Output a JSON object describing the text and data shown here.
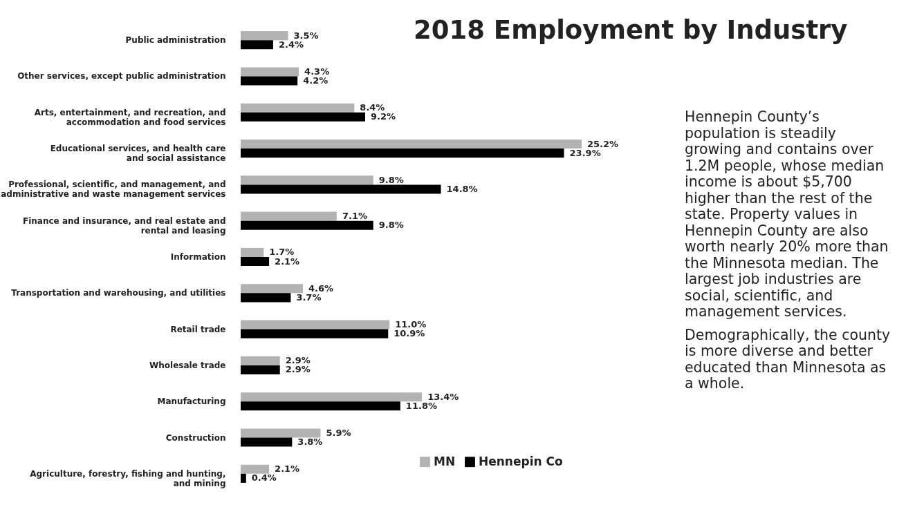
{
  "chart_data": {
    "type": "bar",
    "orientation": "horizontal",
    "title": "2018 Employment by Industry",
    "categories": [
      "Public administration",
      "Other services, except public administration",
      "Arts, entertainment, and recreation, and\naccommodation and food services",
      "Educational services, and health care\nand social assistance",
      "Professional, scientific, and management, and\nadministrative and waste management services",
      "Finance and insurance, and real estate and\nrental and leasing",
      "Information",
      "Transportation and warehousing, and utilities",
      "Retail trade",
      "Wholesale trade",
      "Manufacturing",
      "Construction",
      "Agriculture, forestry, fishing and hunting,\nand mining"
    ],
    "series": [
      {
        "name": "MN",
        "color": "#b3b3b3",
        "values": [
          3.5,
          4.3,
          8.4,
          25.2,
          9.8,
          7.1,
          1.7,
          4.6,
          11.0,
          2.9,
          13.4,
          5.9,
          2.1
        ],
        "value_labels": [
          "3.5%",
          "4.3%",
          "8.4%",
          "25.2%",
          "9.8%",
          "7.1%",
          "1.7%",
          "4.6%",
          "11.0%",
          "2.9%",
          "13.4%",
          "5.9%",
          "2.1%"
        ]
      },
      {
        "name": "Hennepin Co",
        "color": "#000000",
        "values": [
          2.4,
          4.2,
          9.2,
          23.9,
          14.8,
          9.8,
          2.1,
          3.7,
          10.9,
          2.9,
          11.8,
          3.8,
          0.4
        ],
        "value_labels": [
          "2.4%",
          "4.2%",
          "9.2%",
          "23.9%",
          "14.8%",
          "9.8%",
          "2.1%",
          "3.7%",
          "10.9%",
          "2.9%",
          "11.8%",
          "3.8%",
          "0.4%"
        ]
      }
    ],
    "legend": "bottom right",
    "annotations": [
      "Hennepin County’s population is steadily growing and contains over 1.2M people, whose median income is about $5,700 higher than the rest of the state. Property values in Hennepin County are also worth nearly 20% more than the Minnesota median. The largest job industries are social, scientific, and management services.",
      "Demographically, the county is more diverse and better educated than Minnesota as a whole."
    ]
  }
}
